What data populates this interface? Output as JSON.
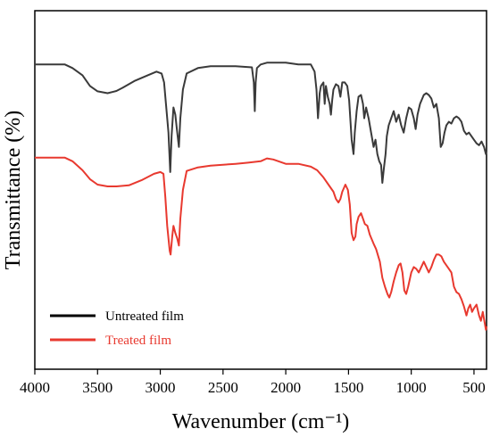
{
  "chart_data": {
    "type": "line",
    "title": "",
    "xlabel": "Wavenumber (cm⁻¹)",
    "ylabel": "Transmittance (%)",
    "xlim": [
      4000,
      400
    ],
    "x_reversed": true,
    "y_ticks_shown": false,
    "ylim": [
      0,
      100
    ],
    "grid": false,
    "legend_position": "bottom-left",
    "x_ticks": [
      4000,
      3500,
      3000,
      2500,
      2000,
      1500,
      1000,
      500
    ],
    "series": [
      {
        "name": "Untreated film",
        "color": "#3a3a3a",
        "points": [
          [
            4000,
            85
          ],
          [
            3760,
            85
          ],
          [
            3700,
            84
          ],
          [
            3620,
            82
          ],
          [
            3560,
            79
          ],
          [
            3500,
            77.5
          ],
          [
            3420,
            77
          ],
          [
            3350,
            77.6
          ],
          [
            3300,
            78.5
          ],
          [
            3200,
            80.5
          ],
          [
            3100,
            82
          ],
          [
            3030,
            83
          ],
          [
            2990,
            82.5
          ],
          [
            2970,
            80
          ],
          [
            2955,
            74
          ],
          [
            2935,
            66
          ],
          [
            2921,
            55
          ],
          [
            2910,
            65
          ],
          [
            2895,
            73
          ],
          [
            2880,
            71
          ],
          [
            2868,
            67
          ],
          [
            2852,
            62
          ],
          [
            2840,
            70
          ],
          [
            2820,
            78
          ],
          [
            2790,
            82.5
          ],
          [
            2700,
            84
          ],
          [
            2600,
            84.5
          ],
          [
            2400,
            84.5
          ],
          [
            2270,
            84.2
          ],
          [
            2255,
            80
          ],
          [
            2247,
            72
          ],
          [
            2240,
            80
          ],
          [
            2230,
            84
          ],
          [
            2200,
            85
          ],
          [
            2150,
            85.5
          ],
          [
            2000,
            85.5
          ],
          [
            1900,
            85
          ],
          [
            1800,
            85
          ],
          [
            1770,
            83
          ],
          [
            1755,
            78
          ],
          [
            1743,
            70
          ],
          [
            1730,
            77
          ],
          [
            1720,
            79
          ],
          [
            1700,
            80
          ],
          [
            1690,
            74
          ],
          [
            1680,
            79
          ],
          [
            1665,
            76
          ],
          [
            1650,
            74
          ],
          [
            1640,
            71
          ],
          [
            1630,
            75
          ],
          [
            1620,
            78
          ],
          [
            1600,
            79.5
          ],
          [
            1580,
            79
          ],
          [
            1565,
            76
          ],
          [
            1550,
            80
          ],
          [
            1530,
            80
          ],
          [
            1510,
            79
          ],
          [
            1495,
            75
          ],
          [
            1475,
            64
          ],
          [
            1460,
            60
          ],
          [
            1450,
            66
          ],
          [
            1435,
            72
          ],
          [
            1420,
            76
          ],
          [
            1400,
            76.5
          ],
          [
            1385,
            74
          ],
          [
            1375,
            70
          ],
          [
            1360,
            73
          ],
          [
            1340,
            70
          ],
          [
            1320,
            66
          ],
          [
            1300,
            62
          ],
          [
            1285,
            64
          ],
          [
            1270,
            60
          ],
          [
            1255,
            58
          ],
          [
            1240,
            57
          ],
          [
            1230,
            52
          ],
          [
            1218,
            56
          ],
          [
            1205,
            60
          ],
          [
            1195,
            65
          ],
          [
            1180,
            68
          ],
          [
            1160,
            70
          ],
          [
            1140,
            72
          ],
          [
            1120,
            69
          ],
          [
            1100,
            71
          ],
          [
            1080,
            68
          ],
          [
            1060,
            66
          ],
          [
            1040,
            70
          ],
          [
            1020,
            73
          ],
          [
            1000,
            72.5
          ],
          [
            980,
            70
          ],
          [
            965,
            67
          ],
          [
            950,
            71
          ],
          [
            930,
            74
          ],
          [
            900,
            76.5
          ],
          [
            880,
            77
          ],
          [
            860,
            76.5
          ],
          [
            840,
            75.5
          ],
          [
            820,
            73
          ],
          [
            800,
            74
          ],
          [
            780,
            70
          ],
          [
            765,
            62
          ],
          [
            750,
            63
          ],
          [
            735,
            66
          ],
          [
            720,
            68
          ],
          [
            700,
            69
          ],
          [
            680,
            68.5
          ],
          [
            660,
            70
          ],
          [
            640,
            70.5
          ],
          [
            620,
            70
          ],
          [
            600,
            69
          ],
          [
            580,
            66.5
          ],
          [
            560,
            65.5
          ],
          [
            540,
            66
          ],
          [
            520,
            65
          ],
          [
            500,
            64
          ],
          [
            480,
            63
          ],
          [
            460,
            62.5
          ],
          [
            440,
            63.5
          ],
          [
            420,
            62
          ],
          [
            405,
            60
          ],
          [
            400,
            61
          ]
        ]
      },
      {
        "name": "Treated film",
        "color": "#e8392f",
        "points": [
          [
            4000,
            59
          ],
          [
            3760,
            59
          ],
          [
            3700,
            58
          ],
          [
            3620,
            55.5
          ],
          [
            3560,
            53
          ],
          [
            3500,
            51.5
          ],
          [
            3420,
            51
          ],
          [
            3350,
            51
          ],
          [
            3250,
            51.3
          ],
          [
            3150,
            52.7
          ],
          [
            3050,
            54.5
          ],
          [
            3000,
            55
          ],
          [
            2975,
            54.5
          ],
          [
            2960,
            48
          ],
          [
            2945,
            40
          ],
          [
            2925,
            33
          ],
          [
            2918,
            32
          ],
          [
            2905,
            37
          ],
          [
            2895,
            40
          ],
          [
            2880,
            38
          ],
          [
            2865,
            36.5
          ],
          [
            2852,
            34.5
          ],
          [
            2840,
            42
          ],
          [
            2820,
            50
          ],
          [
            2790,
            55.3
          ],
          [
            2700,
            56.3
          ],
          [
            2600,
            56.8
          ],
          [
            2400,
            57.3
          ],
          [
            2300,
            57.6
          ],
          [
            2200,
            58
          ],
          [
            2150,
            58.8
          ],
          [
            2100,
            58.5
          ],
          [
            2000,
            57.3
          ],
          [
            1900,
            57.3
          ],
          [
            1800,
            56.5
          ],
          [
            1750,
            55.5
          ],
          [
            1700,
            53.5
          ],
          [
            1650,
            51
          ],
          [
            1620,
            49.5
          ],
          [
            1600,
            47.5
          ],
          [
            1580,
            46.5
          ],
          [
            1565,
            47.5
          ],
          [
            1550,
            49.5
          ],
          [
            1525,
            51.5
          ],
          [
            1505,
            50
          ],
          [
            1490,
            46
          ],
          [
            1475,
            38
          ],
          [
            1460,
            36
          ],
          [
            1445,
            37
          ],
          [
            1435,
            40.5
          ],
          [
            1420,
            42.5
          ],
          [
            1400,
            43.5
          ],
          [
            1385,
            42
          ],
          [
            1370,
            40.5
          ],
          [
            1350,
            40
          ],
          [
            1330,
            37.5
          ],
          [
            1300,
            35
          ],
          [
            1280,
            33.5
          ],
          [
            1250,
            30
          ],
          [
            1230,
            25.5
          ],
          [
            1210,
            23
          ],
          [
            1190,
            21
          ],
          [
            1175,
            20
          ],
          [
            1160,
            21.5
          ],
          [
            1140,
            24.5
          ],
          [
            1120,
            27
          ],
          [
            1100,
            29
          ],
          [
            1085,
            29.5
          ],
          [
            1070,
            27
          ],
          [
            1055,
            22
          ],
          [
            1040,
            21
          ],
          [
            1025,
            23
          ],
          [
            1000,
            27
          ],
          [
            980,
            28.5
          ],
          [
            960,
            28
          ],
          [
            940,
            27
          ],
          [
            920,
            28.5
          ],
          [
            900,
            30
          ],
          [
            880,
            28.5
          ],
          [
            860,
            27
          ],
          [
            840,
            28.5
          ],
          [
            820,
            30.5
          ],
          [
            800,
            32
          ],
          [
            780,
            32
          ],
          [
            760,
            31.5
          ],
          [
            740,
            30
          ],
          [
            720,
            29
          ],
          [
            700,
            28
          ],
          [
            680,
            27
          ],
          [
            660,
            23
          ],
          [
            640,
            21.5
          ],
          [
            620,
            21
          ],
          [
            600,
            19.5
          ],
          [
            580,
            17.5
          ],
          [
            560,
            15
          ],
          [
            545,
            17
          ],
          [
            530,
            18
          ],
          [
            515,
            16
          ],
          [
            500,
            17
          ],
          [
            480,
            18
          ],
          [
            460,
            15
          ],
          [
            445,
            13.5
          ],
          [
            430,
            16
          ],
          [
            415,
            13
          ],
          [
            405,
            11
          ],
          [
            400,
            12
          ]
        ]
      }
    ],
    "legend": [
      {
        "label": "Untreated film",
        "color": "#000000",
        "text_color": "#000000"
      },
      {
        "label": "Treated film",
        "color": "#e8392f",
        "text_color": "#e8392f"
      }
    ]
  }
}
